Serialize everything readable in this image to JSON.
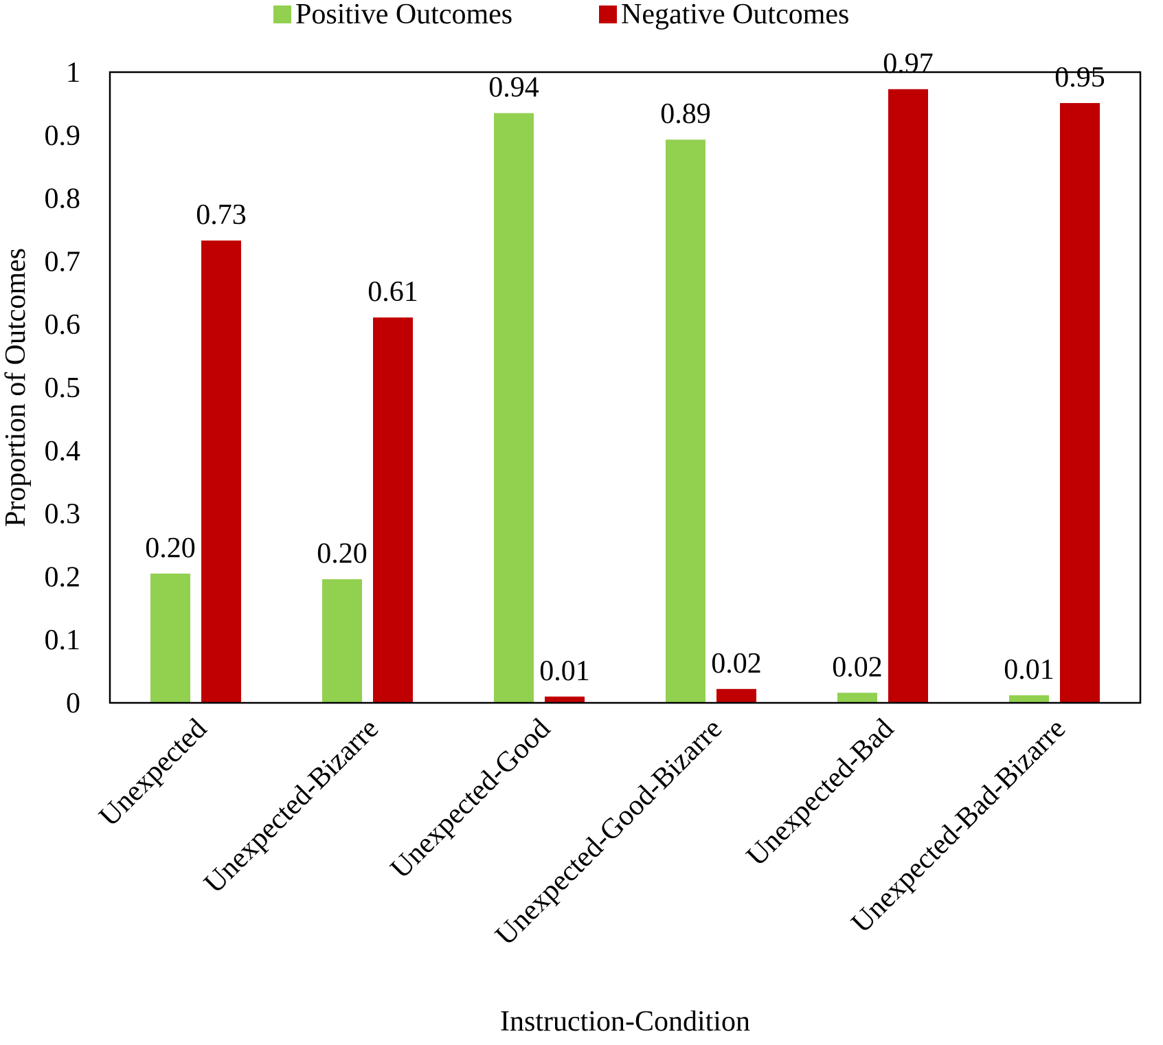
{
  "chart_data": {
    "type": "bar",
    "title": "",
    "xlabel": "Instruction-Condition",
    "ylabel": "Proportion of Outcomes",
    "ylim": [
      0,
      1
    ],
    "y_ticks": [
      "0",
      "0.1",
      "0.2",
      "0.3",
      "0.4",
      "0.5",
      "0.6",
      "0.7",
      "0.8",
      "0.9",
      "1"
    ],
    "grid": false,
    "legend_position": "top",
    "categories": [
      "Unexpected",
      "Unexpected-Bizarre",
      "Unexpected-Good",
      "Unexpected-Good-Bizarre",
      "Unexpected-Bad",
      "Unexpected-Bad-Bizarre"
    ],
    "series": [
      {
        "name": "Positive Outcomes",
        "color": "#92d050",
        "values": [
          0.205,
          0.196,
          0.935,
          0.893,
          0.016,
          0.012
        ],
        "labels": [
          "0.20",
          "0.20",
          "0.94",
          "0.89",
          "0.02",
          "0.01"
        ]
      },
      {
        "name": "Negative Outcomes",
        "color": "#c00000",
        "values": [
          0.733,
          0.611,
          0.01,
          0.022,
          0.973,
          0.951
        ],
        "labels": [
          "0.73",
          "0.61",
          "0.01",
          "0.02",
          "0.97",
          "0.95"
        ]
      }
    ]
  }
}
